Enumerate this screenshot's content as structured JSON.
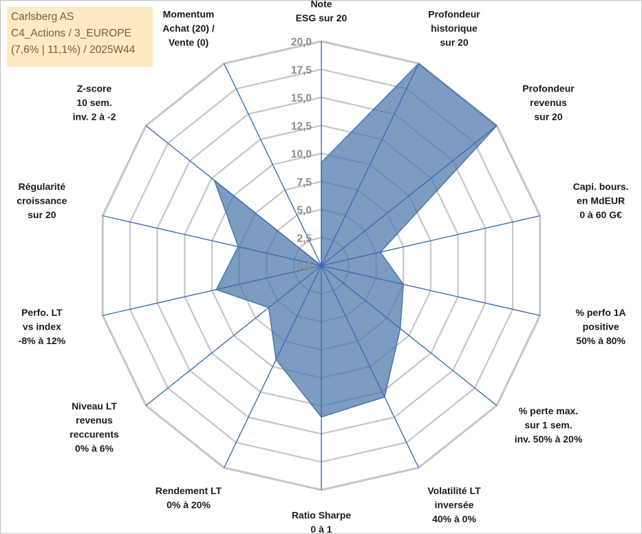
{
  "title_box": {
    "lines": [
      "Carlsberg AS",
      "C4_Actions / 3_EUROPE",
      "(7,6% | 11,1%) / 2025W44"
    ]
  },
  "colors": {
    "fill": "#4a76ab",
    "axis_line": "#3d6cb0",
    "grid": "#c6c6c6",
    "title_bg": "#fde9c2",
    "title_text": "#7a5f3a",
    "tick_text": "#8c8c8c"
  },
  "chart_data": {
    "type": "radar",
    "rmin": 0,
    "rmax": 20,
    "tick_values": [
      0,
      2.5,
      5,
      7.5,
      10,
      12.5,
      15,
      17.5,
      20
    ],
    "tick_labels": [
      "0,0",
      "2,5",
      "5,0",
      "7,5",
      "10,0",
      "12,5",
      "15,0",
      "17,5",
      "20,0"
    ],
    "grid": true,
    "axes": [
      {
        "label": [
          "Note",
          "ESG sur 20"
        ],
        "value": 9.2
      },
      {
        "label": [
          "Profondeur",
          "historique",
          "sur 20"
        ],
        "value": 20
      },
      {
        "label": [
          "Profondeur",
          "revenus",
          "sur 20"
        ],
        "value": 20
      },
      {
        "label": [
          "Capi. bours.",
          "en MdEUR",
          "0 à 60 G€"
        ],
        "value": 5.4
      },
      {
        "label": [
          "% perfo 1A",
          "positive",
          "50% à 80%"
        ],
        "value": 7.5
      },
      {
        "label": [
          "% perte max.",
          "sur 1 sem.",
          "inv. 50% à 20%"
        ],
        "value": 9.0
      },
      {
        "label": [
          "Volatilité LT",
          "inversée",
          "40% à 0%"
        ],
        "value": 13.0
      },
      {
        "label": [
          "Ratio Sharpe",
          "0 à 1"
        ],
        "value": 13.5
      },
      {
        "label": [
          "Rendement LT",
          "0% à 20%"
        ],
        "value": 9.3
      },
      {
        "label": [
          "Niveau LT",
          "revenus",
          "reccurents",
          "0% à 6%"
        ],
        "value": 6.0
      },
      {
        "label": [
          "Perfo. LT",
          "vs index",
          "-8% à 12%"
        ],
        "value": 9.6
      },
      {
        "label": [
          "Régularité",
          "croissance",
          "sur 20"
        ],
        "value": 7.6
      },
      {
        "label": [
          "Z-score",
          "10 sem.",
          "inv. 2 à -2"
        ],
        "value": 12.2
      },
      {
        "label": [
          "Momentum",
          "Achat (20) /",
          "Vente (0)"
        ],
        "value": 0
      }
    ]
  }
}
